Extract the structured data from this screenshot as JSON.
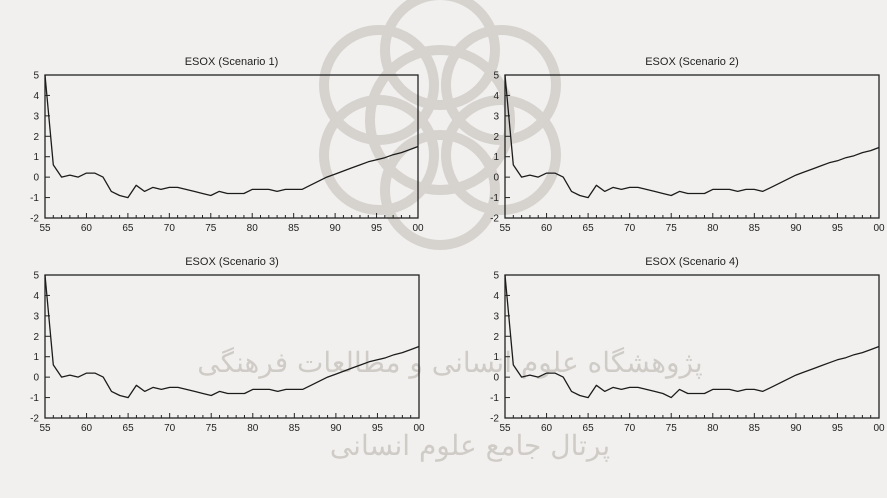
{
  "watermark": {
    "line1": "پژوهشگاه علوم انسانی و مطالعات فرهنگی",
    "line2": "پرتال جامع علوم انسانی"
  },
  "chart_data": [
    {
      "type": "line",
      "title": "ESOX (Scenario 1)",
      "xlabel": "",
      "ylabel": "",
      "x": [
        1955,
        1956,
        1957,
        1958,
        1959,
        1960,
        1961,
        1962,
        1963,
        1964,
        1965,
        1966,
        1967,
        1968,
        1969,
        1970,
        1971,
        1972,
        1973,
        1974,
        1975,
        1976,
        1977,
        1978,
        1979,
        1980,
        1981,
        1982,
        1983,
        1984,
        1985,
        1986,
        1987,
        1988,
        1989,
        1990,
        1991,
        1992,
        1993,
        1994,
        1995,
        1996,
        1997,
        1998,
        1999,
        2000
      ],
      "xtick_labels": [
        "55",
        "60",
        "65",
        "70",
        "75",
        "80",
        "85",
        "90",
        "95",
        "00"
      ],
      "y": [
        5.0,
        0.6,
        0.0,
        0.1,
        0.0,
        0.2,
        0.2,
        0.0,
        -0.7,
        -0.9,
        -1.0,
        -0.4,
        -0.7,
        -0.5,
        -0.6,
        -0.5,
        -0.5,
        -0.6,
        -0.7,
        -0.8,
        -0.9,
        -0.7,
        -0.8,
        -0.8,
        -0.8,
        -0.6,
        -0.6,
        -0.6,
        -0.7,
        -0.6,
        -0.6,
        -0.6,
        -0.4,
        -0.2,
        0.0,
        0.15,
        0.3,
        0.45,
        0.6,
        0.75,
        0.85,
        0.95,
        1.1,
        1.2,
        1.35,
        1.5
      ],
      "ylim": [
        -2,
        5
      ],
      "yticks": [
        5,
        4,
        3,
        2,
        1,
        0,
        -1,
        -2
      ]
    },
    {
      "type": "line",
      "title": "ESOX (Scenario 2)",
      "xlabel": "",
      "ylabel": "",
      "x": [
        1955,
        1956,
        1957,
        1958,
        1959,
        1960,
        1961,
        1962,
        1963,
        1964,
        1965,
        1966,
        1967,
        1968,
        1969,
        1970,
        1971,
        1972,
        1973,
        1974,
        1975,
        1976,
        1977,
        1978,
        1979,
        1980,
        1981,
        1982,
        1983,
        1984,
        1985,
        1986,
        1987,
        1988,
        1989,
        1990,
        1991,
        1992,
        1993,
        1994,
        1995,
        1996,
        1997,
        1998,
        1999,
        2000
      ],
      "xtick_labels": [
        "55",
        "60",
        "65",
        "70",
        "75",
        "80",
        "85",
        "90",
        "95",
        "00"
      ],
      "y": [
        5.0,
        0.6,
        0.0,
        0.1,
        0.0,
        0.2,
        0.2,
        0.0,
        -0.7,
        -0.9,
        -1.0,
        -0.4,
        -0.7,
        -0.5,
        -0.6,
        -0.5,
        -0.5,
        -0.6,
        -0.7,
        -0.8,
        -0.9,
        -0.7,
        -0.8,
        -0.8,
        -0.8,
        -0.6,
        -0.6,
        -0.6,
        -0.7,
        -0.6,
        -0.6,
        -0.7,
        -0.5,
        -0.3,
        -0.1,
        0.1,
        0.25,
        0.4,
        0.55,
        0.7,
        0.8,
        0.95,
        1.05,
        1.2,
        1.3,
        1.45
      ],
      "ylim": [
        -2,
        5
      ],
      "yticks": [
        5,
        4,
        3,
        2,
        1,
        0,
        -1,
        -2
      ]
    },
    {
      "type": "line",
      "title": "ESOX (Scenario 3)",
      "xlabel": "",
      "ylabel": "",
      "x": [
        1955,
        1956,
        1957,
        1958,
        1959,
        1960,
        1961,
        1962,
        1963,
        1964,
        1965,
        1966,
        1967,
        1968,
        1969,
        1970,
        1971,
        1972,
        1973,
        1974,
        1975,
        1976,
        1977,
        1978,
        1979,
        1980,
        1981,
        1982,
        1983,
        1984,
        1985,
        1986,
        1987,
        1988,
        1989,
        1990,
        1991,
        1992,
        1993,
        1994,
        1995,
        1996,
        1997,
        1998,
        1999,
        2000
      ],
      "xtick_labels": [
        "55",
        "60",
        "65",
        "70",
        "75",
        "80",
        "85",
        "90",
        "95",
        "00"
      ],
      "y": [
        5.0,
        0.6,
        0.0,
        0.1,
        0.0,
        0.2,
        0.2,
        0.0,
        -0.7,
        -0.9,
        -1.0,
        -0.4,
        -0.7,
        -0.5,
        -0.6,
        -0.5,
        -0.5,
        -0.6,
        -0.7,
        -0.8,
        -0.9,
        -0.7,
        -0.8,
        -0.8,
        -0.8,
        -0.6,
        -0.6,
        -0.6,
        -0.7,
        -0.6,
        -0.6,
        -0.6,
        -0.4,
        -0.2,
        0.0,
        0.15,
        0.3,
        0.45,
        0.6,
        0.75,
        0.85,
        0.95,
        1.1,
        1.2,
        1.35,
        1.5
      ],
      "ylim": [
        -2,
        5
      ],
      "yticks": [
        5,
        4,
        3,
        2,
        1,
        0,
        -1,
        -2
      ]
    },
    {
      "type": "line",
      "title": "ESOX (Scenario 4)",
      "xlabel": "",
      "ylabel": "",
      "x": [
        1955,
        1956,
        1957,
        1958,
        1959,
        1960,
        1961,
        1962,
        1963,
        1964,
        1965,
        1966,
        1967,
        1968,
        1969,
        1970,
        1971,
        1972,
        1973,
        1974,
        1975,
        1976,
        1977,
        1978,
        1979,
        1980,
        1981,
        1982,
        1983,
        1984,
        1985,
        1986,
        1987,
        1988,
        1989,
        1990,
        1991,
        1992,
        1993,
        1994,
        1995,
        1996,
        1997,
        1998,
        1999,
        2000
      ],
      "xtick_labels": [
        "55",
        "60",
        "65",
        "70",
        "75",
        "80",
        "85",
        "90",
        "95",
        "00"
      ],
      "y": [
        5.0,
        0.6,
        0.0,
        0.1,
        0.0,
        0.2,
        0.2,
        0.0,
        -0.7,
        -0.9,
        -1.0,
        -0.4,
        -0.7,
        -0.5,
        -0.6,
        -0.5,
        -0.5,
        -0.6,
        -0.7,
        -0.8,
        -1.0,
        -0.6,
        -0.8,
        -0.8,
        -0.8,
        -0.6,
        -0.6,
        -0.6,
        -0.7,
        -0.6,
        -0.6,
        -0.7,
        -0.5,
        -0.3,
        -0.1,
        0.1,
        0.25,
        0.4,
        0.55,
        0.7,
        0.85,
        0.95,
        1.1,
        1.2,
        1.35,
        1.5
      ],
      "ylim": [
        -2,
        5
      ],
      "yticks": [
        5,
        4,
        3,
        2,
        1,
        0,
        -1,
        -2
      ]
    }
  ]
}
